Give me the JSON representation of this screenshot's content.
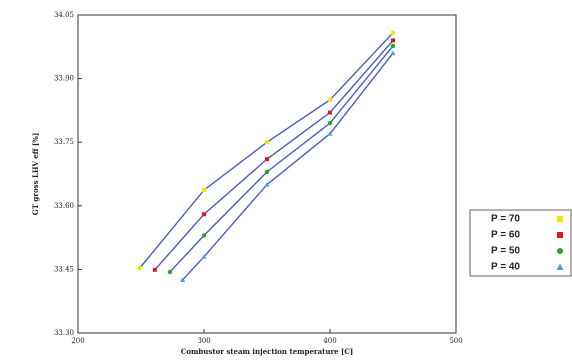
{
  "chart_data": {
    "type": "line",
    "x_label": "Combustor steam injection temperature [C]",
    "y_label": "GT gross LHV eff [%]",
    "xlim": [
      200,
      500
    ],
    "xticks": [
      200,
      300,
      400,
      500
    ],
    "ylim": [
      33.3,
      34.05
    ],
    "yticks": [
      {
        "value": 33.3,
        "label": "33.30"
      },
      {
        "value": 33.45,
        "label": "33.45"
      },
      {
        "value": 33.6,
        "label": "33.60"
      },
      {
        "value": 33.75,
        "label": "33.75"
      },
      {
        "value": 33.9,
        "label": "33.90"
      },
      {
        "value": 34.05,
        "label": "34.05"
      }
    ],
    "line_color": "#4a5cc4",
    "legend": "right",
    "series": [
      {
        "name": "P = 70",
        "color": "#f2e600",
        "marker": "square",
        "x": [
          249,
          300,
          350,
          400,
          450
        ],
        "values": [
          33.453,
          33.637,
          33.75,
          33.85,
          34.008
        ]
      },
      {
        "name": "P = 60",
        "color": "#e8141c",
        "marker": "square",
        "x": [
          261,
          300,
          350,
          400,
          450
        ],
        "values": [
          33.449,
          33.58,
          33.71,
          33.82,
          33.99
        ]
      },
      {
        "name": "P = 50",
        "color": "#1ab01a",
        "marker": "circle",
        "x": [
          273,
          300,
          350,
          400,
          450
        ],
        "values": [
          33.444,
          33.53,
          33.68,
          33.795,
          33.977
        ]
      },
      {
        "name": "P = 40",
        "color": "#3fa7d6",
        "marker": "triangle",
        "x": [
          283,
          300,
          350,
          400,
          450
        ],
        "values": [
          33.425,
          33.48,
          33.65,
          33.77,
          33.96
        ]
      }
    ]
  }
}
